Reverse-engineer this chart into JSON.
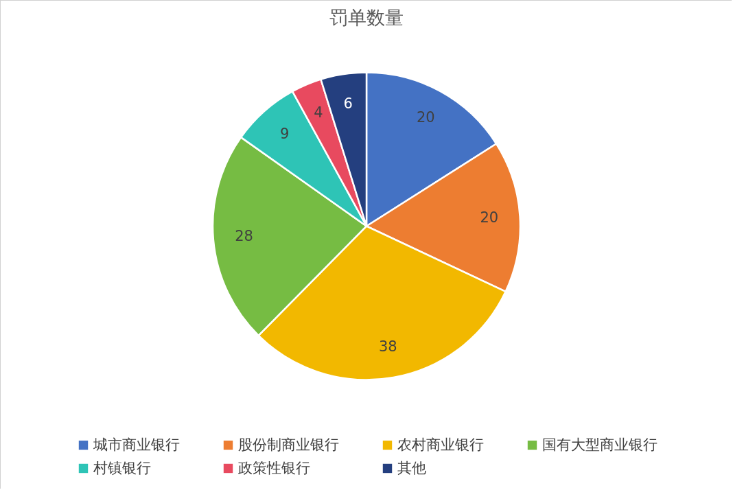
{
  "chart_data": {
    "type": "pie",
    "title": "罚单数量",
    "categories": [
      "城市商业银行",
      "股份制商业银行",
      "农村商业银行",
      "国有大型商业银行",
      "村镇银行",
      "政策性银行",
      "其他"
    ],
    "values": [
      20,
      20,
      38,
      28,
      9,
      4,
      6
    ],
    "colors": [
      "#4472c4",
      "#ed7d31",
      "#f2b800",
      "#76bc43",
      "#2ec4b6",
      "#e84a5f",
      "#243f7f"
    ],
    "data_labels": true,
    "legend": "bottom"
  }
}
